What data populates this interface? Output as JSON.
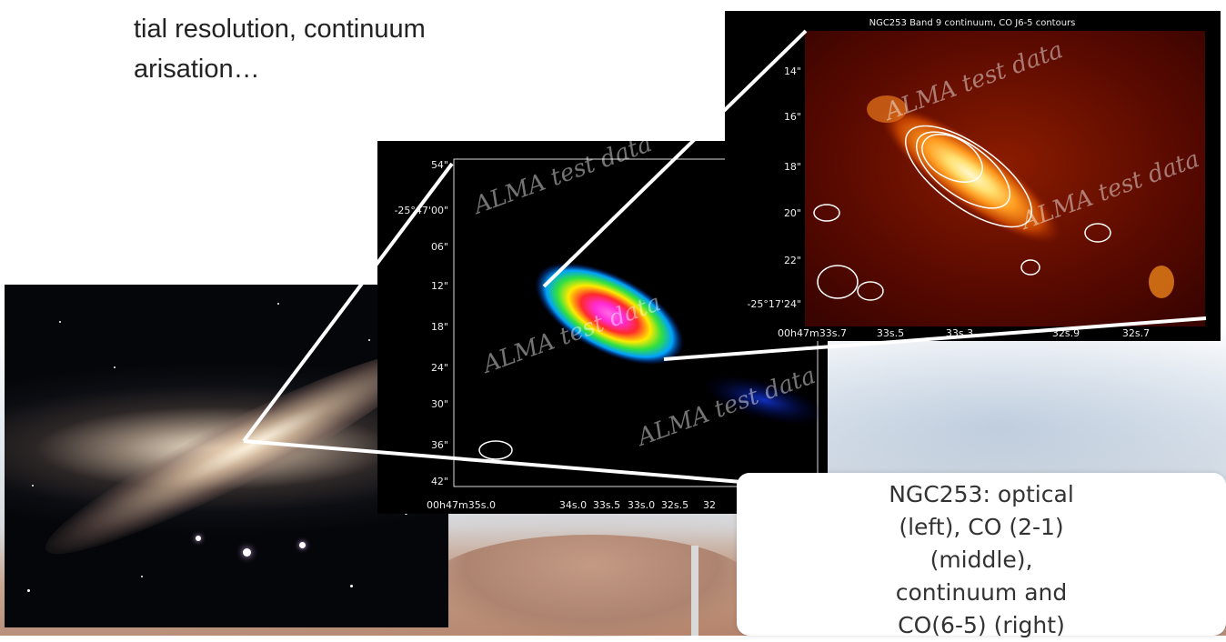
{
  "slide": {
    "text_line1": "tial resolution, continuum",
    "text_line2": "arisation…",
    "caption": "NGC253: optical (left), CO (2-1) (middle), continuum and CO(6-5) (right)"
  },
  "middle_panel": {
    "dec_ticks": [
      "54\"",
      "-25°47'00\"",
      "06\"",
      "12\"",
      "18\"",
      "24\"",
      "30\"",
      "36\"",
      "42\""
    ],
    "ra_ticks": [
      "00h47m35s.0",
      "34s.0",
      "33s.5",
      "33s.0",
      "32s.5",
      "32"
    ],
    "watermark": "ALMA test data"
  },
  "right_panel": {
    "title": "NGC253 Band 9 continuum, CO J6-5 contours",
    "dec_ticks": [
      "14\"",
      "16\"",
      "18\"",
      "20\"",
      "22\"",
      "-25°17'24\""
    ],
    "ra_ticks": [
      "00h47m33s.7",
      "33s.5",
      "33s.3",
      "32s.9",
      "32s.7"
    ],
    "watermark": "ALMA test data"
  },
  "colors": {
    "jet_core": "#ff2bd6",
    "jet_mid": "#ffea00",
    "jet_outer": "#00a0ff",
    "heat_peak": "#fff2a0",
    "heat_mid": "#e06a10",
    "heat_low": "#3a0400"
  }
}
